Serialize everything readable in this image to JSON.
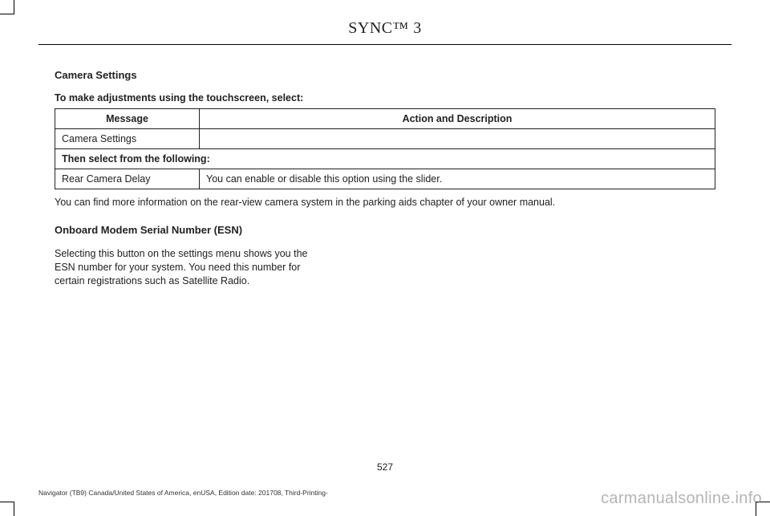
{
  "header": {
    "title": "SYNC™ 3"
  },
  "sections": {
    "camera_settings_heading": "Camera Settings",
    "instruction": "To make adjustments using the touchscreen, select:",
    "table": {
      "head_message": "Message",
      "head_action": "Action and Description",
      "row1_msg": "Camera Settings",
      "row1_action": "",
      "row2_full": "Then select from the following:",
      "row3_msg": "Rear Camera Delay",
      "row3_action": "You can enable or disable this option using the slider."
    },
    "note": "You can find more information on the rear-view camera system in the parking aids chapter of your owner manual.",
    "esn_heading": "Onboard Modem Serial Number (ESN)",
    "esn_body": "Selecting this button on the settings menu shows you the ESN number for your system. You need this number for certain registrations such as Satellite Radio."
  },
  "footer": {
    "page_number": "527",
    "doc_info": "Navigator (TB9) Canada/United States of America, enUSA, Edition date: 201708, Third-Printing-"
  },
  "watermark": "carmanualsonline.info"
}
